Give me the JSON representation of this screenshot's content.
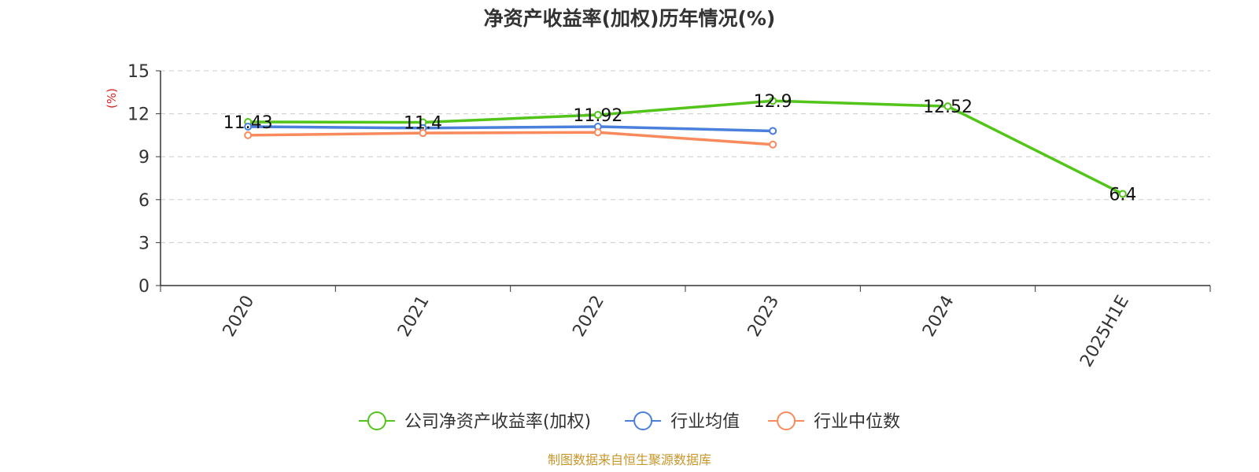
{
  "chart_data": {
    "type": "line",
    "title": "净资产收益率(加权)历年情况(%)",
    "ylabel": "(%)",
    "categories": [
      "2020",
      "2021",
      "2022",
      "2023",
      "2024",
      "2025H1E"
    ],
    "ylim": [
      0,
      15
    ],
    "yticks": [
      0,
      3,
      6,
      9,
      12,
      15
    ],
    "grid": true,
    "legend_position": "bottom-center",
    "series": [
      {
        "name": "公司净资产收益率(加权)",
        "color": "#52c41a",
        "values": [
          11.43,
          11.4,
          11.92,
          12.9,
          12.52,
          6.4
        ],
        "labels": [
          "11.43",
          "11.4",
          "11.92",
          "12.9",
          "12.52",
          "6.4"
        ]
      },
      {
        "name": "行业均值",
        "color": "#4a7fdc",
        "values": [
          11.1,
          11.0,
          11.1,
          10.8,
          null,
          null
        ]
      },
      {
        "name": "行业中位数",
        "color": "#f98a5c",
        "values": [
          10.5,
          10.65,
          10.7,
          9.85,
          null,
          null
        ]
      }
    ],
    "source": "制图数据来自恒生聚源数据库"
  }
}
